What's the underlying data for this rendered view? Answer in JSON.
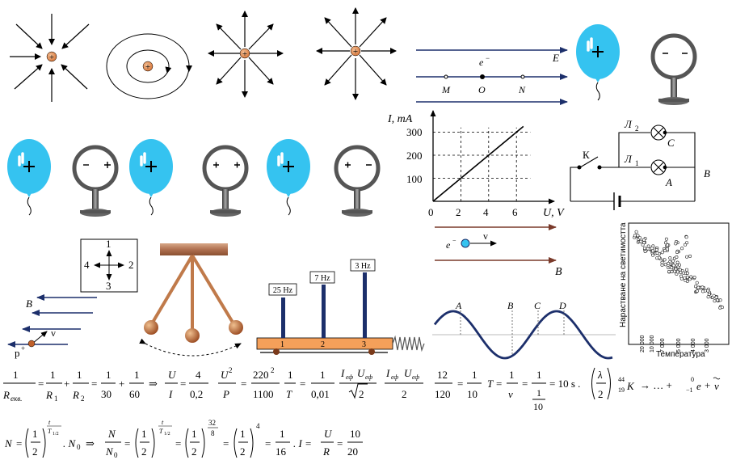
{
  "field_lines": {
    "electron_label": "e",
    "electron_sup": "−",
    "field_label": "E",
    "points": [
      "M",
      "O",
      "N"
    ]
  },
  "balloon_symbols": {
    "mark": "!!",
    "plus": "+",
    "minus": "−"
  },
  "graph_iu": {
    "ylabel": "I, mA",
    "xlabel": "U, V",
    "x_ticks": [
      "0",
      "2",
      "4",
      "6"
    ],
    "y_ticks": [
      "100",
      "200",
      "300"
    ]
  },
  "chart_data": {
    "type": "line",
    "title": "",
    "xlabel": "U, V",
    "ylabel": "I, mA",
    "xlim": [
      0,
      7.5
    ],
    "ylim": [
      0,
      340
    ],
    "x_ticks": [
      0,
      2,
      4,
      6
    ],
    "y_ticks": [
      100,
      200,
      300
    ],
    "grid": "dashed at ticks",
    "series": [
      {
        "x": [
          0,
          2,
          4,
          6
        ],
        "y": [
          0,
          100,
          200,
          300
        ]
      }
    ]
  },
  "circuit": {
    "l2": "Л",
    "l2_sub": "2",
    "l1": "Л",
    "l1_sub": "1",
    "key": "К",
    "c": "C",
    "a": "A",
    "b": "B"
  },
  "compass": {
    "n1": "1",
    "n2": "2",
    "n3": "3",
    "n4": "4"
  },
  "magnetic_field": {
    "b_left": "B",
    "p_label": "p",
    "p_sup": "+",
    "v_left": "v",
    "e_label": "e",
    "e_sup": "−",
    "v_right": "v",
    "b_right": "B"
  },
  "resonance": {
    "f1": "25 Hz",
    "f2": "7 Hz",
    "f3": "3 Hz",
    "n1": "1",
    "n2": "2",
    "n3": "3"
  },
  "wave": {
    "a": "A",
    "b": "B",
    "c": "C",
    "d": "D"
  },
  "scatter_plot": {
    "ylabel": "Нарастване на светимостта",
    "xlabel": "Температура",
    "x_ticks": [
      "20 000",
      "10 000",
      "7 000",
      "5 000",
      "4 000",
      "3 000"
    ]
  },
  "formulas": {
    "one": "1",
    "rekv": "R",
    "rekv_sub": "екв.",
    "r1": "R",
    "r1_sub": "1",
    "r2": "R",
    "r2_sub": "2",
    "thirty": "30",
    "sixty": "60",
    "plus": "+",
    "eq": "=",
    "implies": "⇒",
    "u": "U",
    "i": "I",
    "four": "4",
    "zero_two": "0,2",
    "u2": "U",
    "two": "2",
    "p": "P",
    "two_twenty": "220",
    "eleven_hundred": "1100",
    "t": "T",
    "zero_zero_one": "0,01",
    "ief": "I",
    "ef_sub": "еф",
    "uef": "U",
    "sqrt2": "2",
    "twelve": "12",
    "one_twenty": "120",
    "ten": "10",
    "nu": "ν",
    "ten_s": "= 10 s .",
    "lambda": "λ",
    "k_mass": "44",
    "k_charge": "19",
    "k": "K",
    "arrow": "→ … +",
    "e_mass": "0",
    "e_charge": "−1",
    "e": "e",
    "nubar": "ν",
    "n": "N",
    "n0": "N",
    "n0_sub": "0",
    "half_exp": "t",
    "half_exp_sub": "T",
    "half_sub": "1/2",
    "dotn0": ". N",
    "exp32": "32",
    "exp8": "8",
    "exp4": "4",
    "sixteen": "16",
    "r": "R",
    "twenty": "20",
    "dot_i": ". I ="
  }
}
